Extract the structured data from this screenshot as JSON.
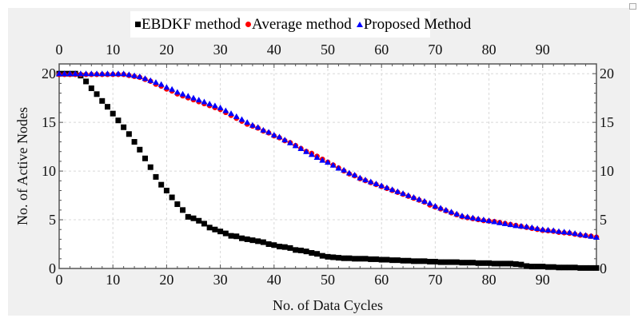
{
  "chart_data": {
    "type": "scatter",
    "xlabel": "No. of Data Cycles",
    "ylabel": "No. of Active Nodes",
    "xlim": [
      0,
      100
    ],
    "ylim": [
      0,
      21
    ],
    "xticks": [
      "0",
      "10",
      "20",
      "30",
      "40",
      "50",
      "60",
      "70",
      "80",
      "90"
    ],
    "yticks": [
      "0",
      "5",
      "10",
      "15",
      "20"
    ],
    "grid": true,
    "legend_position": "top",
    "series": [
      {
        "name": "EBDKF method",
        "color": "#000000",
        "marker": "square",
        "values": [
          20,
          20,
          20,
          20,
          19.8,
          19.2,
          18.5,
          17.9,
          17.2,
          16.6,
          15.9,
          15.2,
          14.5,
          13.8,
          13.0,
          12.2,
          11.3,
          10.4,
          9.4,
          8.6,
          8.0,
          7.3,
          6.6,
          6.0,
          5.3,
          5.15,
          4.9,
          4.6,
          4.2,
          4.0,
          3.8,
          3.6,
          3.35,
          3.3,
          3.1,
          3.0,
          2.9,
          2.8,
          2.7,
          2.5,
          2.4,
          2.25,
          2.2,
          2.1,
          1.9,
          1.85,
          1.75,
          1.6,
          1.5,
          1.3,
          1.2,
          1.15,
          1.1,
          1.05,
          1.05,
          1.0,
          1.0,
          1.0,
          0.95,
          0.95,
          0.9,
          0.9,
          0.85,
          0.85,
          0.8,
          0.8,
          0.75,
          0.75,
          0.75,
          0.7,
          0.7,
          0.65,
          0.65,
          0.65,
          0.65,
          0.6,
          0.6,
          0.6,
          0.55,
          0.55,
          0.55,
          0.5,
          0.5,
          0.5,
          0.5,
          0.45,
          0.4,
          0.25,
          0.2,
          0.2,
          0.2,
          0.15,
          0.15,
          0.1,
          0.1,
          0.1,
          0.1,
          0.05,
          0.05,
          0.05,
          0.05
        ]
      },
      {
        "name": "Average method",
        "color": "#ff0000",
        "marker": "circle",
        "values": [
          20,
          20,
          20,
          20,
          20,
          20,
          20,
          20,
          20,
          20,
          20,
          20,
          20,
          19.9,
          19.8,
          19.7,
          19.5,
          19.3,
          19.0,
          18.8,
          18.5,
          18.3,
          18.0,
          17.8,
          17.6,
          17.4,
          17.2,
          17.0,
          16.8,
          16.6,
          16.4,
          16.1,
          15.8,
          15.5,
          15.2,
          14.9,
          14.7,
          14.5,
          14.2,
          14.0,
          13.7,
          13.5,
          13.2,
          13.0,
          12.7,
          12.4,
          12.1,
          11.9,
          11.6,
          11.3,
          11.0,
          10.7,
          10.4,
          10.1,
          9.8,
          9.6,
          9.3,
          9.1,
          8.9,
          8.7,
          8.5,
          8.3,
          8.1,
          7.9,
          7.7,
          7.5,
          7.3,
          7.1,
          6.9,
          6.6,
          6.4,
          6.2,
          6.0,
          5.8,
          5.6,
          5.4,
          5.3,
          5.2,
          5.1,
          5.0,
          4.95,
          4.9,
          4.8,
          4.7,
          4.6,
          4.5,
          4.4,
          4.3,
          4.2,
          4.1,
          4.0,
          3.95,
          3.9,
          3.8,
          3.75,
          3.7,
          3.6,
          3.5,
          3.45,
          3.4,
          3.3
        ]
      },
      {
        "name": "Proposed Method",
        "color": "#0000ff",
        "marker": "triangle",
        "values": [
          20,
          20,
          20,
          20,
          20,
          20,
          20,
          20,
          20,
          20,
          20,
          20,
          20,
          19.9,
          19.8,
          19.7,
          19.5,
          19.3,
          19.1,
          18.9,
          18.6,
          18.4,
          18.1,
          17.9,
          17.7,
          17.5,
          17.3,
          17.1,
          16.9,
          16.7,
          16.5,
          16.2,
          15.9,
          15.6,
          15.3,
          15.0,
          14.7,
          14.5,
          14.2,
          14.0,
          13.7,
          13.5,
          13.2,
          12.9,
          12.6,
          12.3,
          12.0,
          11.7,
          11.4,
          11.1,
          10.9,
          10.6,
          10.3,
          10.1,
          9.8,
          9.6,
          9.3,
          9.1,
          8.9,
          8.7,
          8.5,
          8.3,
          8.1,
          7.9,
          7.7,
          7.5,
          7.3,
          7.1,
          6.9,
          6.7,
          6.4,
          6.2,
          6.0,
          5.8,
          5.6,
          5.4,
          5.3,
          5.2,
          5.1,
          5.0,
          4.9,
          4.8,
          4.7,
          4.6,
          4.5,
          4.4,
          4.35,
          4.3,
          4.2,
          4.1,
          4.0,
          3.95,
          3.9,
          3.8,
          3.75,
          3.7,
          3.6,
          3.5,
          3.4,
          3.3,
          3.2
        ]
      }
    ]
  }
}
